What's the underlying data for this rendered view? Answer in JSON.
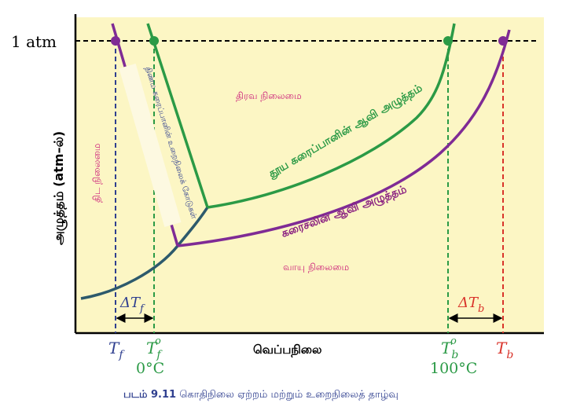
{
  "labels": {
    "atm": "1 atm",
    "y_axis": "அழுத்தம் (atm–ல்)",
    "x_axis": "வெப்பநிலை",
    "solid_region": "திட நிலைமை",
    "liquid_region": "திரவ நிலைமை",
    "gas_region": "வாயு நிலைமை",
    "solvent_vp": "தூய கரைப்பானின் ஆவி அழுத்தம்",
    "solution_vp": "கரைசலின் ஆவி அழுத்தம்",
    "solution_freeze_line": "திண்ம கரைப்பானின் உறைநிலைக் கோடுகள்",
    "zero_c": "0°C",
    "hundred_c": "100°C",
    "delta_tf": "ΔT",
    "delta_tf_sub": "f",
    "delta_tb": "ΔT",
    "delta_tb_sub": "b",
    "tf": "T",
    "tf_sub": "f",
    "tf0": "T",
    "tf0_sub": "f",
    "tf0_sup": "o",
    "tb0": "T",
    "tb0_sub": "b",
    "tb0_sup": "o",
    "tb": "T",
    "tb_sub": "b",
    "caption_prefix": "படம் 9.11",
    "caption_text": "கொதிநிலை ஏற்றம் மற்றும் உறைநிலைத் தாழ்வு"
  },
  "colors": {
    "background": "#fcf6c4",
    "solvent": "#2b9a46",
    "solution": "#7f2b95",
    "sublimation": "#2d5a6c",
    "tf_line": "#2f3f8f",
    "tb_line": "#d9342b",
    "pink_text": "#cc1f7a",
    "purple_text": "#8a2080"
  }
}
